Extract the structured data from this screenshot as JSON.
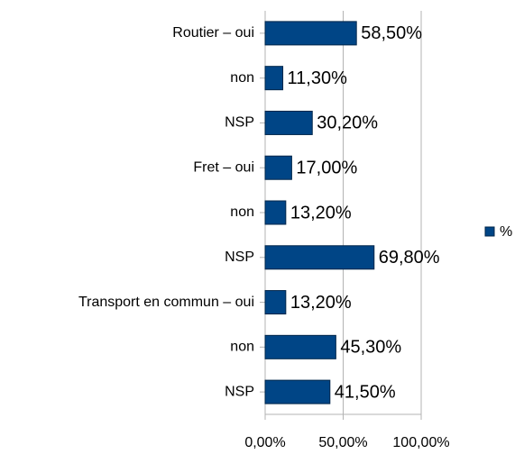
{
  "chart_data": {
    "type": "bar",
    "orientation": "horizontal",
    "categories": [
      "Routier – oui",
      "non",
      "NSP",
      "Fret – oui",
      "non",
      "NSP",
      "Transport en commun – oui",
      "non",
      "NSP"
    ],
    "series": [
      {
        "name": "%",
        "color": "#004586",
        "values": [
          58.5,
          11.3,
          30.2,
          17.0,
          13.2,
          69.8,
          13.2,
          45.3,
          41.5
        ],
        "value_labels": [
          "58,50%",
          "11,30%",
          "30,20%",
          "17,00%",
          "13,20%",
          "69,80%",
          "13,20%",
          "45,30%",
          "41,50%"
        ]
      }
    ],
    "xlim": [
      0,
      100
    ],
    "xticks": [
      {
        "value": 0,
        "label": "0,00%"
      },
      {
        "value": 50,
        "label": "50,00%"
      },
      {
        "value": 100,
        "label": "100,00%"
      }
    ],
    "grid": true,
    "legend": "right"
  }
}
